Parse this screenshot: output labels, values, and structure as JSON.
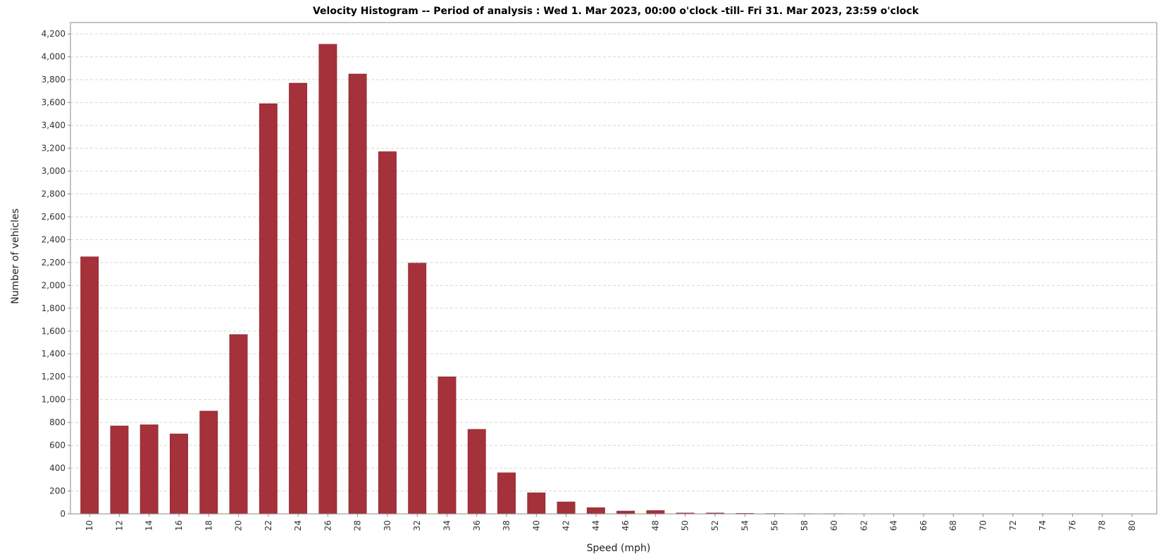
{
  "chart_data": {
    "type": "bar",
    "title": "Velocity Histogram  --  Period of analysis :   Wed 1. Mar 2023, 00:00 o'clock   -till-   Fri 31. Mar 2023, 23:59 o'clock",
    "xlabel": "Speed (mph)",
    "ylabel": "Number of vehicles",
    "ylim": [
      0,
      4300
    ],
    "yticks": [
      0,
      200,
      400,
      600,
      800,
      1000,
      1200,
      1400,
      1600,
      1800,
      2000,
      2200,
      2400,
      2600,
      2800,
      3000,
      3200,
      3400,
      3600,
      3800,
      4000,
      4200
    ],
    "ytick_labels": [
      "0",
      "200",
      "400",
      "600",
      "800",
      "1,000",
      "1,200",
      "1,400",
      "1,600",
      "1,800",
      "2,000",
      "2,200",
      "2,400",
      "2,600",
      "2,800",
      "3,000",
      "3,200",
      "3,400",
      "3,600",
      "3,800",
      "4,000",
      "4,200"
    ],
    "categories": [
      "10",
      "12",
      "14",
      "16",
      "18",
      "20",
      "22",
      "24",
      "26",
      "28",
      "30",
      "32",
      "34",
      "36",
      "38",
      "40",
      "42",
      "44",
      "46",
      "48",
      "50",
      "52",
      "54",
      "56",
      "58",
      "60",
      "62",
      "64",
      "66",
      "68",
      "70",
      "72",
      "74",
      "76",
      "78",
      "80"
    ],
    "values": [
      2250,
      770,
      780,
      700,
      900,
      1570,
      3590,
      3770,
      4110,
      3850,
      3170,
      2195,
      1200,
      740,
      360,
      185,
      105,
      55,
      25,
      30,
      8,
      8,
      5,
      3,
      2,
      2,
      0,
      0,
      0,
      0,
      0,
      0,
      0,
      0,
      0,
      0
    ],
    "grid": true,
    "colors": {
      "bar": "#a5313a",
      "bar_edge": "#7e2028",
      "grid": "#d8d8d8"
    }
  }
}
